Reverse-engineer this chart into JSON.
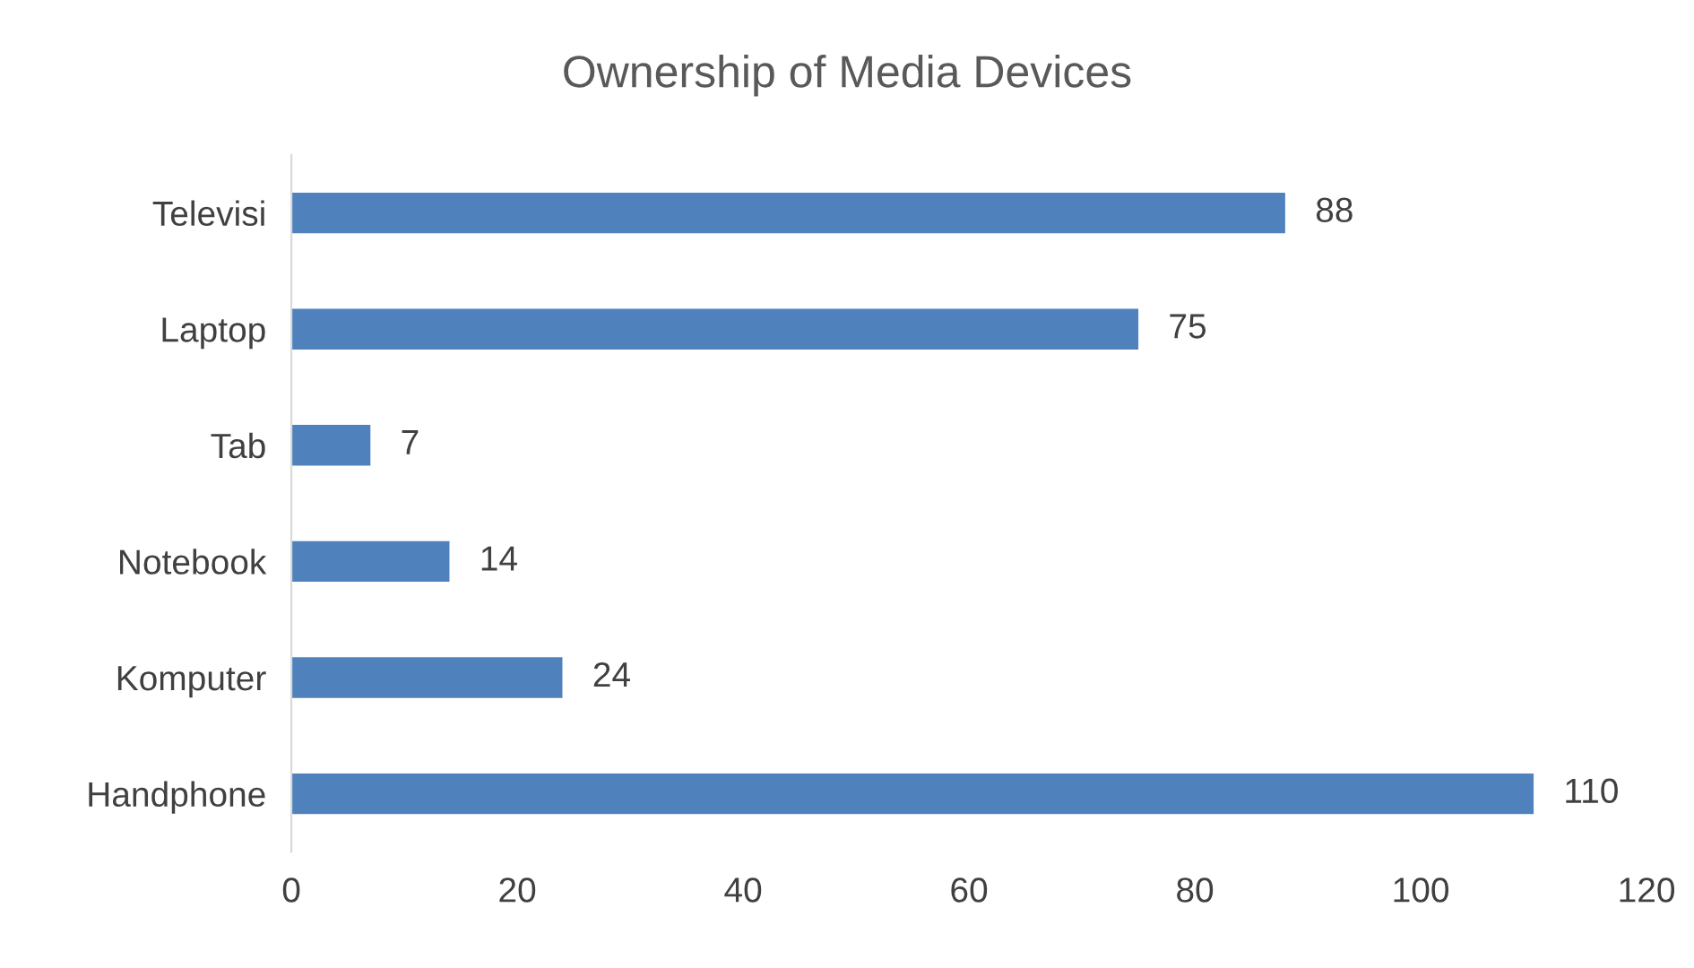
{
  "chart_data": {
    "type": "bar",
    "orientation": "horizontal",
    "title": "Ownership of Media Devices",
    "categories": [
      "Televisi",
      "Laptop",
      "Tab",
      "Notebook",
      "Komputer",
      "Handphone"
    ],
    "values": [
      88,
      75,
      7,
      14,
      24,
      110
    ],
    "color": "#4f81bd",
    "xlim": [
      0,
      120
    ],
    "xticks": [
      0,
      20,
      40,
      60,
      80,
      100,
      120
    ],
    "data_labels": true,
    "grid": false,
    "legend": false
  }
}
